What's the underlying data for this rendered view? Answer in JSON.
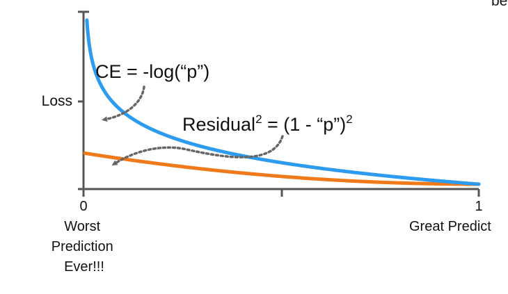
{
  "chart_data": {
    "type": "line",
    "ylabel": "Loss",
    "x_ticks": [
      {
        "value": 0,
        "label": "0"
      },
      {
        "value": 0.5,
        "label": ""
      },
      {
        "value": 1,
        "label": "1"
      }
    ],
    "x_end_labels": {
      "left": [
        "Worst",
        "Prediction",
        "Ever!!!"
      ],
      "right": "Great Predict"
    },
    "top_right_fragment": "be",
    "xlim": [
      0,
      1
    ],
    "ylim": [
      0,
      5.5
    ],
    "series": [
      {
        "name": "CE = -log(“p”)",
        "formula": "-log(p)",
        "color": "#2d9bf0",
        "points": [
          [
            0.005,
            5.3
          ],
          [
            0.01,
            4.61
          ],
          [
            0.02,
            3.91
          ],
          [
            0.03,
            3.51
          ],
          [
            0.05,
            3.0
          ],
          [
            0.1,
            2.3
          ],
          [
            0.2,
            1.61
          ],
          [
            0.3,
            1.2
          ],
          [
            0.4,
            0.92
          ],
          [
            0.5,
            0.69
          ],
          [
            0.6,
            0.51
          ],
          [
            0.7,
            0.36
          ],
          [
            0.8,
            0.22
          ],
          [
            0.9,
            0.11
          ],
          [
            1.0,
            0.0
          ]
        ]
      },
      {
        "name": "Residual² = (1 - “p”)²",
        "formula": "(1-p)^2",
        "color": "#f07a1a",
        "points": [
          [
            0.0,
            1.0
          ],
          [
            0.1,
            0.81
          ],
          [
            0.2,
            0.64
          ],
          [
            0.3,
            0.49
          ],
          [
            0.4,
            0.36
          ],
          [
            0.5,
            0.25
          ],
          [
            0.6,
            0.16
          ],
          [
            0.7,
            0.09
          ],
          [
            0.8,
            0.04
          ],
          [
            0.9,
            0.01
          ],
          [
            1.0,
            0.0
          ]
        ]
      }
    ],
    "annotations": {
      "ce": {
        "text": "CE = -log(“p”)"
      },
      "residual": {
        "base": "Residual",
        "sup1": "2",
        "mid": " = (1 - “p”)",
        "sup2": "2"
      }
    }
  }
}
